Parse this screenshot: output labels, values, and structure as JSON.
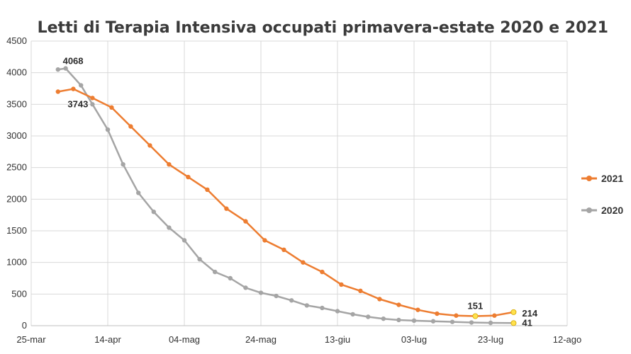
{
  "chart_data": {
    "type": "line",
    "title": "Letti di Terapia Intensiva occupati primavera-estate 2020 e 2021",
    "xlabel": "",
    "ylabel": "",
    "ylim": [
      0,
      4500
    ],
    "y_ticks": [
      "0",
      "500",
      "1000",
      "1500",
      "2000",
      "2500",
      "3000",
      "3500",
      "4000",
      "4500"
    ],
    "x_ticks": [
      "25-mar",
      "14-apr",
      "04-mag",
      "24-mag",
      "13-giu",
      "03-lug",
      "23-lug",
      "12-ago"
    ],
    "grid": "vertical and horizontal",
    "legend_position": "right",
    "series": [
      {
        "name": "2021",
        "color": "#ED7D31",
        "x": [
          "01-apr",
          "05-apr",
          "10-apr",
          "15-apr",
          "20-apr",
          "25-apr",
          "30-apr",
          "05-mag",
          "10-mag",
          "15-mag",
          "20-mag",
          "25-mag",
          "30-mag",
          "04-giu",
          "09-giu",
          "14-giu",
          "19-giu",
          "24-giu",
          "29-giu",
          "04-lug",
          "09-lug",
          "14-lug",
          "19-lug",
          "24-lug",
          "29-lug"
        ],
        "values": [
          3700,
          3743,
          3600,
          3450,
          3150,
          2850,
          2550,
          2350,
          2150,
          1850,
          1650,
          1350,
          1200,
          1000,
          850,
          650,
          550,
          420,
          330,
          250,
          190,
          160,
          151,
          160,
          214
        ]
      },
      {
        "name": "2020",
        "color": "#A5A5A5",
        "x": [
          "01-apr",
          "03-apr",
          "07-apr",
          "10-apr",
          "14-apr",
          "18-apr",
          "22-apr",
          "26-apr",
          "30-apr",
          "04-mag",
          "08-mag",
          "12-mag",
          "16-mag",
          "20-mag",
          "24-mag",
          "28-mag",
          "01-giu",
          "05-giu",
          "09-giu",
          "13-giu",
          "17-giu",
          "21-giu",
          "25-giu",
          "29-giu",
          "03-lug",
          "08-lug",
          "13-lug",
          "18-lug",
          "23-lug",
          "29-lug"
        ],
        "values": [
          4050,
          4068,
          3800,
          3500,
          3100,
          2550,
          2100,
          1800,
          1550,
          1350,
          1050,
          850,
          750,
          600,
          520,
          470,
          400,
          320,
          280,
          230,
          180,
          140,
          110,
          90,
          80,
          70,
          60,
          50,
          45,
          41
        ]
      }
    ],
    "annotations": [
      {
        "text": "4068",
        "series": "2020",
        "x": "03-apr",
        "y": 4068
      },
      {
        "text": "3743",
        "series": "2021",
        "x": "05-apr",
        "y": 3743
      },
      {
        "text": "151",
        "series": "2021",
        "x": "19-lug",
        "y": 151
      },
      {
        "text": "214",
        "series": "2021",
        "x": "29-lug",
        "y": 214
      },
      {
        "text": "41",
        "series": "2020",
        "x": "29-lug",
        "y": 41
      }
    ]
  }
}
